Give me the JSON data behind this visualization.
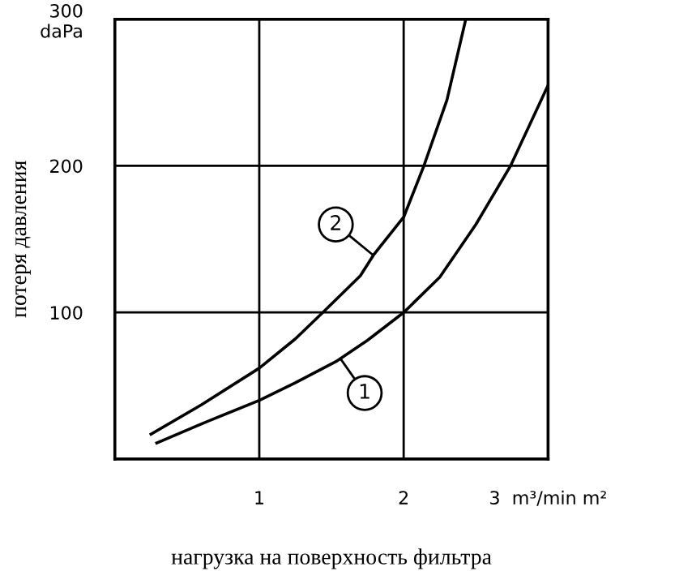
{
  "chart_data": {
    "type": "line",
    "xlabel": "нагрузка на поверхность фильтра",
    "ylabel": "потеря давления",
    "xlim": [
      0,
      3
    ],
    "ylim": [
      0,
      300
    ],
    "xticks": [
      1,
      2,
      {
        "value": 3,
        "label": "3  m³/min m²"
      }
    ],
    "yticks": [
      100,
      200,
      {
        "value": 300,
        "label": "300\ndaPa"
      }
    ],
    "grid": true,
    "legend": false,
    "marker": "none",
    "line_style": "solid",
    "series": [
      {
        "color": "#000000",
        "x": [
          0.29,
          0.6,
          1.0,
          1.25,
          1.54,
          1.75,
          2.0,
          2.25,
          2.5,
          2.74,
          3.0
        ],
        "values": [
          11,
          24,
          40,
          52,
          67,
          81,
          100,
          124,
          160,
          200,
          255
        ]
      },
      {
        "color": "#000000",
        "x": [
          0.25,
          0.6,
          1.0,
          1.25,
          1.44,
          1.7,
          1.79,
          2.0,
          2.14,
          2.3,
          2.43
        ],
        "values": [
          17,
          37,
          62,
          82,
          100,
          125,
          139,
          165,
          200,
          245,
          300
        ]
      }
    ],
    "annotations": [
      {
        "text": "1",
        "x": 1.73,
        "y": 45
      },
      {
        "text": "2",
        "x": 1.53,
        "y": 160
      }
    ]
  }
}
